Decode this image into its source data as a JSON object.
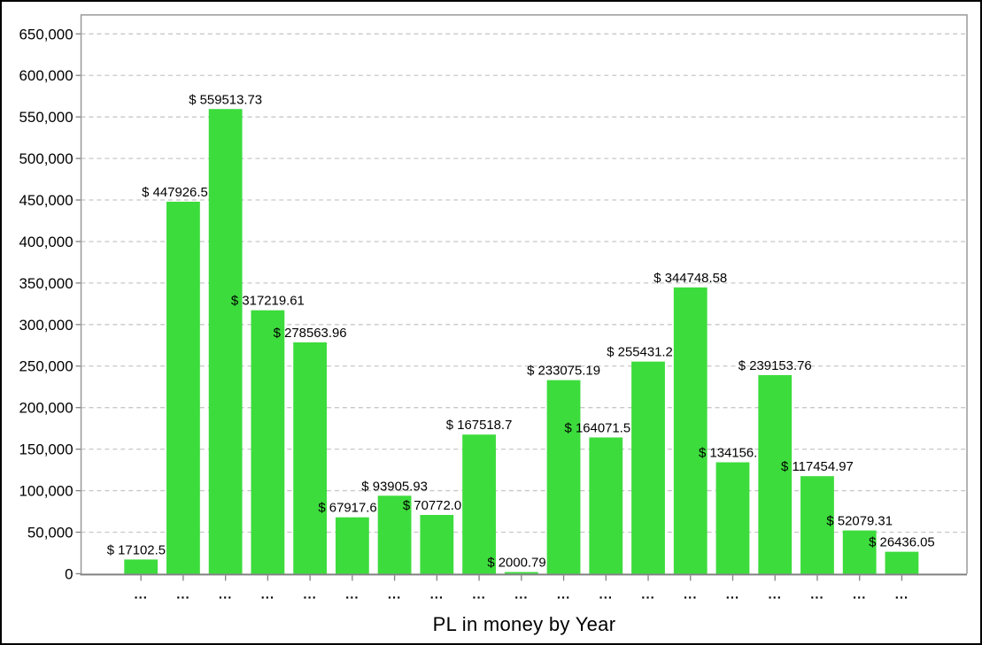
{
  "chart_data": {
    "type": "bar",
    "title": "PL in money by Year",
    "legend": "none",
    "grid": "horizontal-dashed",
    "ylim": [
      0,
      650000
    ],
    "y_ticks": [
      0,
      50000,
      100000,
      150000,
      200000,
      250000,
      300000,
      350000,
      400000,
      450000,
      500000,
      550000,
      600000,
      650000
    ],
    "y_tick_labels": [
      "0",
      "50,000",
      "100,000",
      "150,000",
      "200,000",
      "250,000",
      "300,000",
      "350,000",
      "400,000",
      "450,000",
      "500,000",
      "550,000",
      "600,000",
      "650,000"
    ],
    "x_tick_labels": [
      "...",
      "...",
      "...",
      "...",
      "...",
      "...",
      "...",
      "...",
      "...",
      "...",
      "...",
      "...",
      "...",
      "...",
      "...",
      "...",
      "...",
      "...",
      "..."
    ],
    "values": [
      17102.5,
      447926.5,
      559513.73,
      317219.61,
      278563.96,
      67917.6,
      93905.93,
      70772.0,
      167518.7,
      2000.79,
      233075.19,
      164071.5,
      255431.2,
      344748.58,
      134156,
      239153.76,
      117454.97,
      52079.31,
      26436.05
    ],
    "bar_labels": [
      "$ 17102.5",
      "$ 447926.5",
      "$ 559513.73",
      "$ 317219.61",
      "$ 278563.96",
      "$ 67917.6",
      "$ 93905.93",
      "$ 70772.0",
      "$ 167518.7",
      "$ 2000.79",
      "$ 233075.19",
      "$ 164071.5",
      "$ 255431.2",
      "$ 344748.58",
      "$ 134156.",
      "$ 239153.76",
      "$ 117454.97",
      "$ 52079.31",
      "$ 26436.05"
    ],
    "bar_label_truncated": [
      true,
      true,
      false,
      false,
      false,
      true,
      false,
      true,
      false,
      true,
      false,
      true,
      true,
      false,
      true,
      false,
      false,
      false,
      false
    ],
    "colors": {
      "bar": "#3CDC3C",
      "gridline": "#c8c8c8",
      "plot_border": "#999999",
      "axis_line": "#808080",
      "tick": "#808080",
      "text": "#000000"
    }
  }
}
